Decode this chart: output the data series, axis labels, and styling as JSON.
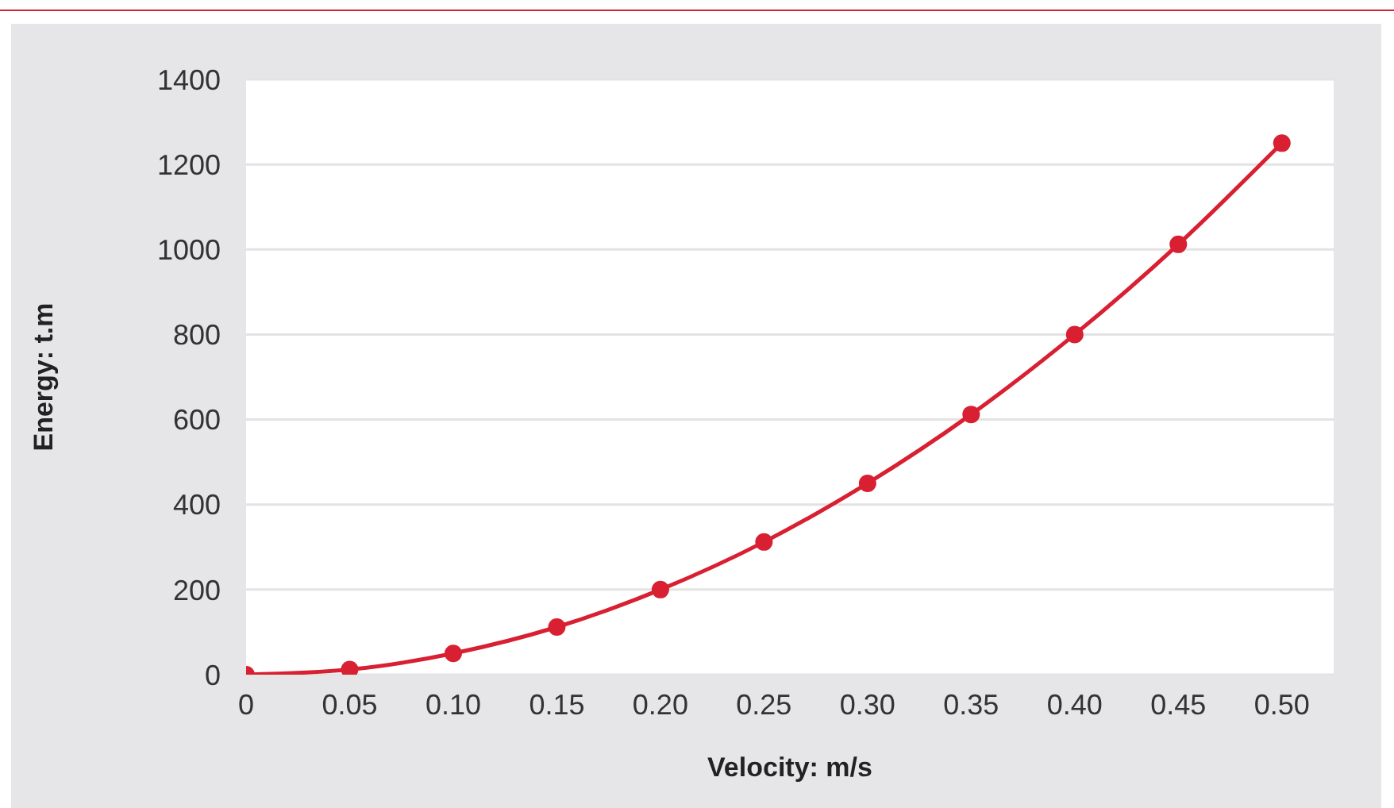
{
  "chart_data": {
    "type": "line",
    "xlabel": "Velocity: m/s",
    "ylabel": "Energy: t.m",
    "x": [
      0,
      0.05,
      0.1,
      0.15,
      0.2,
      0.25,
      0.3,
      0.35,
      0.4,
      0.45,
      0.5
    ],
    "series": [
      {
        "color": "#d91f32",
        "values": [
          0,
          12,
          50,
          112,
          200,
          312,
          450,
          612,
          800,
          1012,
          1250
        ]
      }
    ],
    "xlim": [
      0,
      0.525
    ],
    "xticks": [
      0,
      {
        "value": 0.05,
        "label": "0.05"
      },
      {
        "value": 0.1,
        "label": "0.10"
      },
      {
        "value": 0.15,
        "label": "0.15"
      },
      {
        "value": 0.2,
        "label": "0.20"
      },
      {
        "value": 0.25,
        "label": "0.25"
      },
      {
        "value": 0.3,
        "label": "0.30"
      },
      {
        "value": 0.35,
        "label": "0.35"
      },
      {
        "value": 0.4,
        "label": "0.40"
      },
      {
        "value": 0.45,
        "label": "0.45"
      },
      {
        "value": 0.5,
        "label": "0.50"
      }
    ],
    "ylim": [
      0,
      1400
    ],
    "yticks": [
      0,
      200,
      400,
      600,
      800,
      1000,
      1200,
      1400
    ],
    "grid": "y",
    "marker": "circle",
    "line_style": "solid",
    "legend": false
  }
}
